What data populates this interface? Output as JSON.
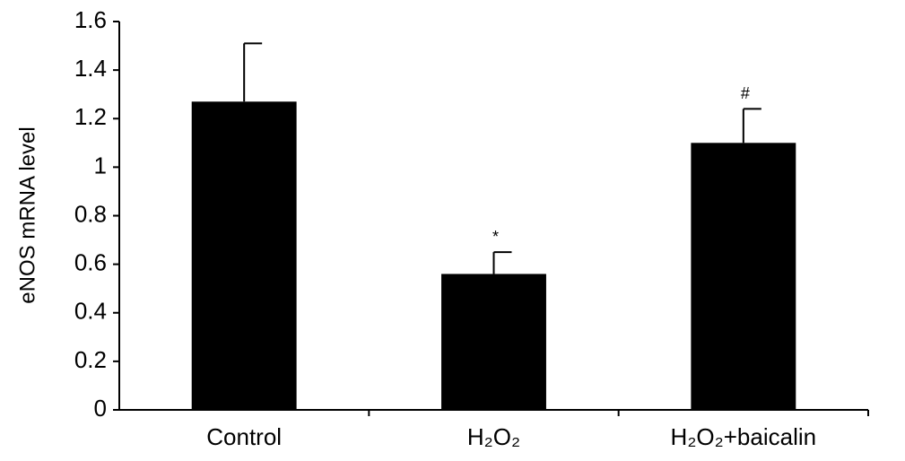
{
  "chart_data": {
    "type": "bar",
    "y_label": "eNOS mRNA level",
    "categories": [
      "Control",
      "H₂O₂",
      "H₂O₂+baicalin"
    ],
    "values": [
      1.27,
      0.56,
      1.1
    ],
    "errors": [
      0.24,
      0.09,
      0.14
    ],
    "significance": [
      null,
      "*",
      "#"
    ],
    "color": "#000000",
    "ylim": [
      0,
      1.6
    ],
    "yticks": [
      0,
      0.2,
      0.4,
      0.6,
      0.8,
      1,
      1.2,
      1.4,
      1.6
    ],
    "grid": false
  }
}
